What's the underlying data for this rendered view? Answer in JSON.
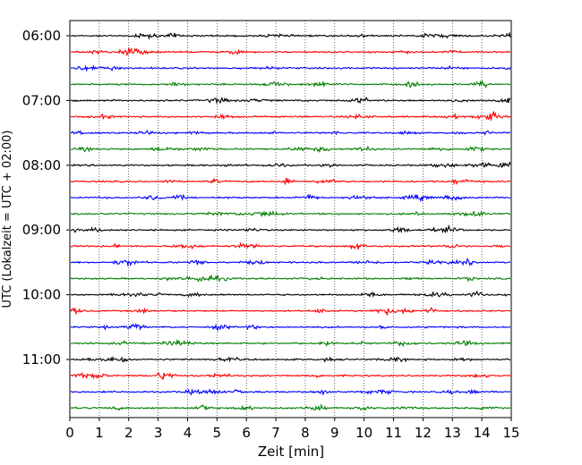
{
  "chart_data": {
    "type": "line",
    "title": "",
    "xlabel": "Zeit  [min]",
    "ylabel": "UTC (Lokalzeit = UTC + 02:00)",
    "xlim": [
      0,
      15
    ],
    "xticks": [
      0,
      1,
      2,
      3,
      4,
      5,
      6,
      7,
      8,
      9,
      10,
      11,
      12,
      13,
      14,
      15
    ],
    "xgrid": "vertical dotted lines at every minute",
    "ytick_labels": [
      "06:00",
      "07:00",
      "08:00",
      "09:00",
      "10:00",
      "11:00"
    ],
    "traces_per_hour": 4,
    "trace_interval_minutes": 15,
    "colors": [
      "#000000",
      "#ff0000",
      "#0000ff",
      "#007f00"
    ],
    "traces": [
      {
        "start": "06:00",
        "color": "#000000"
      },
      {
        "start": "06:15",
        "color": "#ff0000"
      },
      {
        "start": "06:30",
        "color": "#0000ff"
      },
      {
        "start": "06:45",
        "color": "#007f00"
      },
      {
        "start": "07:00",
        "color": "#000000"
      },
      {
        "start": "07:15",
        "color": "#ff0000"
      },
      {
        "start": "07:30",
        "color": "#0000ff"
      },
      {
        "start": "07:45",
        "color": "#007f00"
      },
      {
        "start": "08:00",
        "color": "#000000"
      },
      {
        "start": "08:15",
        "color": "#ff0000"
      },
      {
        "start": "08:30",
        "color": "#0000ff"
      },
      {
        "start": "08:45",
        "color": "#007f00"
      },
      {
        "start": "09:00",
        "color": "#000000"
      },
      {
        "start": "09:15",
        "color": "#ff0000"
      },
      {
        "start": "09:30",
        "color": "#0000ff"
      },
      {
        "start": "09:45",
        "color": "#007f00"
      },
      {
        "start": "10:00",
        "color": "#000000"
      },
      {
        "start": "10:15",
        "color": "#ff0000"
      },
      {
        "start": "10:30",
        "color": "#0000ff"
      },
      {
        "start": "10:45",
        "color": "#007f00"
      },
      {
        "start": "11:00",
        "color": "#000000"
      },
      {
        "start": "11:15",
        "color": "#ff0000"
      },
      {
        "start": "11:30",
        "color": "#0000ff"
      },
      {
        "start": "11:45",
        "color": "#007f00"
      }
    ]
  }
}
